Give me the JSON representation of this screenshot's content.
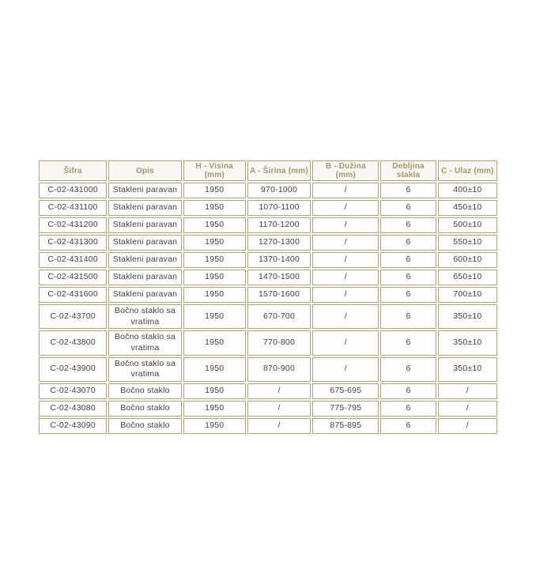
{
  "colors": {
    "page_background": "#ffffff",
    "border_gold": "#b1a277",
    "header_text_gold": "#a4966a",
    "header_background": "#f8f7f4",
    "cell_background": "#fefefe",
    "body_text": "#3f3f3f"
  },
  "table": {
    "columns": [
      "Šifra",
      "Opis",
      "H - Visina (mm)",
      "A - Širina (mm)",
      "B - Dužina (mm)",
      "Debljina stakla",
      "C - Ulaz (mm)"
    ],
    "rows": [
      [
        "C-02-431000",
        "Stakleni paravan",
        "1950",
        "970-1000",
        "/",
        "6",
        "400±10"
      ],
      [
        "C-02-431100",
        "Stakleni paravan",
        "1950",
        "1070-1100",
        "/",
        "6",
        "450±10"
      ],
      [
        "C-02-431200",
        "Stakleni paravan",
        "1950",
        "1170-1200",
        "/",
        "6",
        "500±10"
      ],
      [
        "C-02-431300",
        "Stakleni paravan",
        "1950",
        "1270-1300",
        "/",
        "6",
        "550±10"
      ],
      [
        "C-02-431400",
        "Stakleni paravan",
        "1950",
        "1370-1400",
        "/",
        "6",
        "600±10"
      ],
      [
        "C-02-431500",
        "Stakleni paravan",
        "1950",
        "1470-1500",
        "/",
        "6",
        "650±10"
      ],
      [
        "C-02-431600",
        "Stakleni paravan",
        "1950",
        "1570-1600",
        "/",
        "6",
        "700±10"
      ],
      [
        "C-02-43700",
        "Bočno staklo sa vratima",
        "1950",
        "670-700",
        "/",
        "6",
        "350±10"
      ],
      [
        "C-02-43800",
        "Bočno staklo sa vratima",
        "1950",
        "770-800",
        "/",
        "6",
        "350±10"
      ],
      [
        "C-02-43900",
        "Bočno staklo sa vratima",
        "1950",
        "870-900",
        "/",
        "6",
        "350±10"
      ],
      [
        "C-02-43070",
        "Bočno staklo",
        "1950",
        "/",
        "675-695",
        "6",
        "/"
      ],
      [
        "C-02-43080",
        "Bočno staklo",
        "1950",
        "/",
        "775-795",
        "6",
        "/"
      ],
      [
        "C-02-43090",
        "Bočno staklo",
        "1950",
        "/",
        "875-895",
        "6",
        "/"
      ]
    ]
  }
}
